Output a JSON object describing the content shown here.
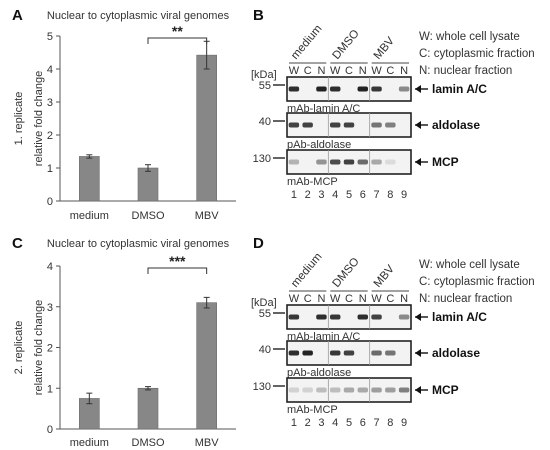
{
  "figure": {
    "panel_letters": [
      "A",
      "B",
      "C",
      "D"
    ],
    "legend": [
      "W: whole cell lysate",
      "C: cytoplasmic fraction",
      "N: nuclear fraction"
    ],
    "blot_groups": [
      "medium",
      "DMSO",
      "MBV"
    ],
    "lane_letters": [
      "W",
      "C",
      "N",
      "W",
      "C",
      "N",
      "W",
      "C",
      "N"
    ],
    "lane_numbers": [
      "1",
      "2",
      "3",
      "4",
      "5",
      "6",
      "7",
      "8",
      "9"
    ],
    "kda_unit": "[kDa]",
    "blots": [
      {
        "marker": "55",
        "antibody": "mAb-lamin A/C",
        "protein": "lamin A/C",
        "intensities_B": [
          0.9,
          0.0,
          0.95,
          0.9,
          0.0,
          0.95,
          0.85,
          0.0,
          0.45
        ],
        "intensities_D": [
          0.85,
          0.0,
          0.9,
          0.85,
          0.0,
          0.9,
          0.8,
          0.0,
          0.45
        ]
      },
      {
        "marker": "40",
        "antibody": "pAb-aldolase",
        "protein": "aldolase",
        "intensities_B": [
          0.8,
          0.8,
          0.0,
          0.8,
          0.8,
          0.0,
          0.55,
          0.5,
          0.0
        ],
        "intensities_D": [
          0.9,
          0.95,
          0.0,
          0.85,
          0.8,
          0.0,
          0.6,
          0.55,
          0.0
        ]
      },
      {
        "marker": "130",
        "antibody": "mAb-MCP",
        "protein": "MCP",
        "intensities_B": [
          0.25,
          0.0,
          0.4,
          0.75,
          0.8,
          0.6,
          0.3,
          0.05,
          0.0
        ],
        "intensities_D": [
          0.1,
          0.1,
          0.2,
          0.2,
          0.3,
          0.3,
          0.35,
          0.35,
          0.5
        ]
      }
    ]
  },
  "chart_data": [
    {
      "panel": "A",
      "type": "bar",
      "title": "Nuclear to cytoplasmic viral genomes",
      "side_label": "1. replicate",
      "ylabel": "relative fold change",
      "categories": [
        "medium",
        "DMSO",
        "MBV"
      ],
      "values": [
        1.35,
        1.0,
        4.42
      ],
      "errors": [
        0.05,
        0.1,
        0.42
      ],
      "ylim": [
        0,
        5
      ],
      "yticks": [
        "0",
        "1",
        "2",
        "3",
        "4",
        "5"
      ],
      "significance": {
        "from": "DMSO",
        "to": "MBV",
        "label": "**"
      },
      "bar_color": "#878787"
    },
    {
      "panel": "C",
      "type": "bar",
      "title": "Nuclear to cytoplasmic viral genomes",
      "side_label": "2. replicate",
      "ylabel": "relative fold change",
      "categories": [
        "medium",
        "DMSO",
        "MBV"
      ],
      "values": [
        0.75,
        1.0,
        3.1
      ],
      "errors": [
        0.13,
        0.04,
        0.13
      ],
      "ylim": [
        0,
        4
      ],
      "yticks": [
        "0",
        "1",
        "2",
        "3",
        "4"
      ],
      "significance": {
        "from": "DMSO",
        "to": "MBV",
        "label": "***"
      },
      "bar_color": "#878787"
    }
  ]
}
